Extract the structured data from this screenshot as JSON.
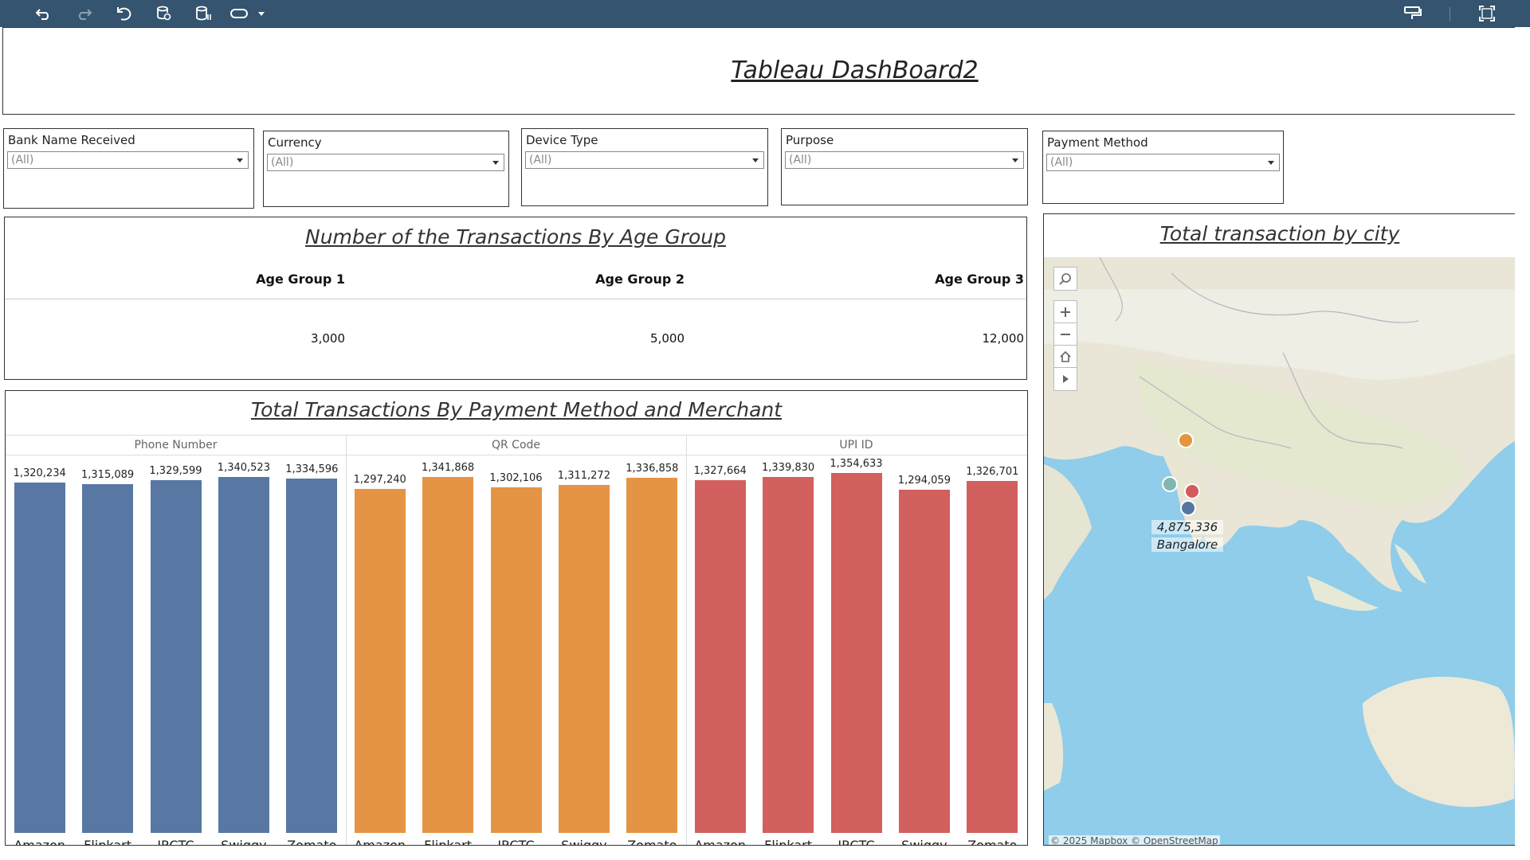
{
  "toolbar": {
    "icons": [
      "undo-icon",
      "redo-icon",
      "revert-icon",
      "refresh-data-icon",
      "pause-updates-icon",
      "present-mode-icon",
      "dropdown-icon",
      "format-painter-icon",
      "fullscreen-icon"
    ]
  },
  "dashboard": {
    "title": "Tableau DashBoard2"
  },
  "filters": [
    {
      "label": "Bank Name Received",
      "value": "(All)"
    },
    {
      "label": "Currency",
      "value": "(All)"
    },
    {
      "label": "Device Type",
      "value": "(All)"
    },
    {
      "label": "Purpose",
      "value": "(All)"
    },
    {
      "label": "Payment Method",
      "value": "(All)"
    }
  ],
  "age_table": {
    "title": "Number of the Transactions By Age Group",
    "headers": [
      "Age Group 1",
      "Age Group 2",
      "Age Group 3"
    ],
    "values": [
      "3,000",
      "5,000",
      "12,000"
    ]
  },
  "bar_section": {
    "title": "Total Transactions By Payment Method and Merchant"
  },
  "map": {
    "title": "Total transaction by city",
    "label_value": "4,875,336",
    "label_city": "Bangalore",
    "attribution": "© 2025 Mapbox  © OpenStreetMap",
    "dot_colors": [
      "#e4933f",
      "#7fb6b0",
      "#d45b5b",
      "#5575a3"
    ]
  },
  "chart_data": {
    "type": "bar",
    "title": "Total Transactions By Payment Method and Merchant",
    "panes": [
      "Phone Number",
      "QR Code",
      "UPI ID"
    ],
    "categories": [
      "Amazon",
      "Flipkart",
      "IRCTC",
      "Swiggy",
      "Zomato"
    ],
    "colors": [
      "#5878a3",
      "#e49444",
      "#d1605e"
    ],
    "series": [
      {
        "name": "Phone Number",
        "values": [
          1320234,
          1315089,
          1329599,
          1340523,
          1334596
        ],
        "labels": [
          "1,320,234",
          "1,315,089",
          "1,329,599",
          "1,340,523",
          "1,334,596"
        ]
      },
      {
        "name": "QR Code",
        "values": [
          1297240,
          1341868,
          1302106,
          1311272,
          1336858
        ],
        "labels": [
          "1,297,240",
          "1,341,868",
          "1,302,106",
          "1,311,272",
          "1,336,858"
        ]
      },
      {
        "name": "UPI ID",
        "values": [
          1327664,
          1339830,
          1354633,
          1294059,
          1326701
        ],
        "labels": [
          "1,327,664",
          "1,339,830",
          "1,354,633",
          "1,294,059",
          "1,326,701"
        ]
      }
    ],
    "ylim": [
      0,
      1380000
    ],
    "xlabel": "",
    "ylabel": ""
  }
}
